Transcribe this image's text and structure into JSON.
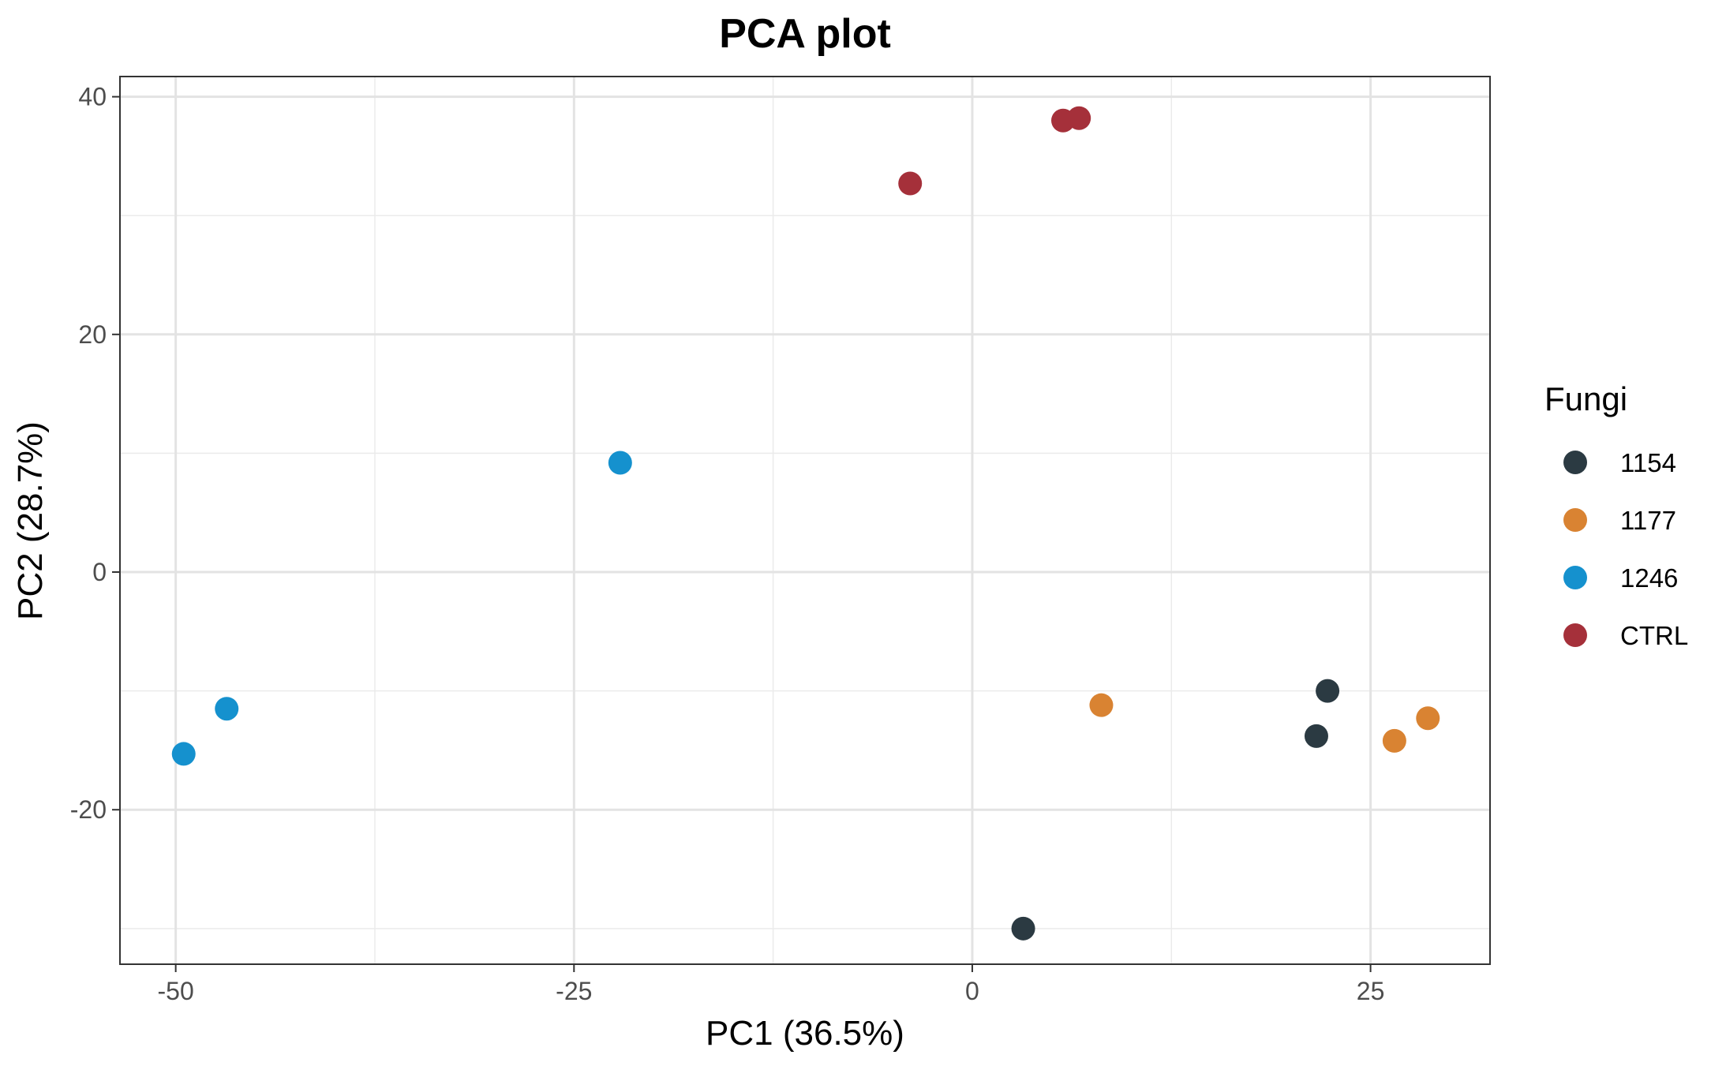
{
  "chart_data": {
    "type": "scatter",
    "title": "PCA plot",
    "xlabel": "PC1 (36.5%)",
    "ylabel": "PC2 (28.7%)",
    "xlim": [
      -53.5,
      32.5
    ],
    "ylim": [
      -33.0,
      41.7
    ],
    "xticks": [
      -50,
      -25,
      0,
      25
    ],
    "xtick_labels": [
      "-50",
      "-25",
      "0",
      "25"
    ],
    "yticks": [
      -20,
      0,
      20,
      40
    ],
    "ytick_labels": [
      "-20",
      "0",
      "20",
      "40"
    ],
    "grid": true,
    "legend": {
      "title": "Fungi",
      "position": "right"
    },
    "series": [
      {
        "name": "1154",
        "color": "#2B3A42",
        "points": [
          [
            3.2,
            -30.0
          ],
          [
            21.6,
            -13.8
          ],
          [
            22.3,
            -10.0
          ]
        ]
      },
      {
        "name": "1177",
        "color": "#D98332",
        "points": [
          [
            8.1,
            -11.2
          ],
          [
            26.5,
            -14.2
          ],
          [
            28.6,
            -12.3
          ]
        ]
      },
      {
        "name": "1246",
        "color": "#1591CE",
        "points": [
          [
            -49.5,
            -15.3
          ],
          [
            -46.8,
            -11.5
          ],
          [
            -22.1,
            9.2
          ]
        ]
      },
      {
        "name": "CTRL",
        "color": "#A5303A",
        "points": [
          [
            -3.9,
            32.7
          ],
          [
            5.7,
            38.0
          ],
          [
            6.7,
            38.2
          ]
        ]
      }
    ]
  }
}
